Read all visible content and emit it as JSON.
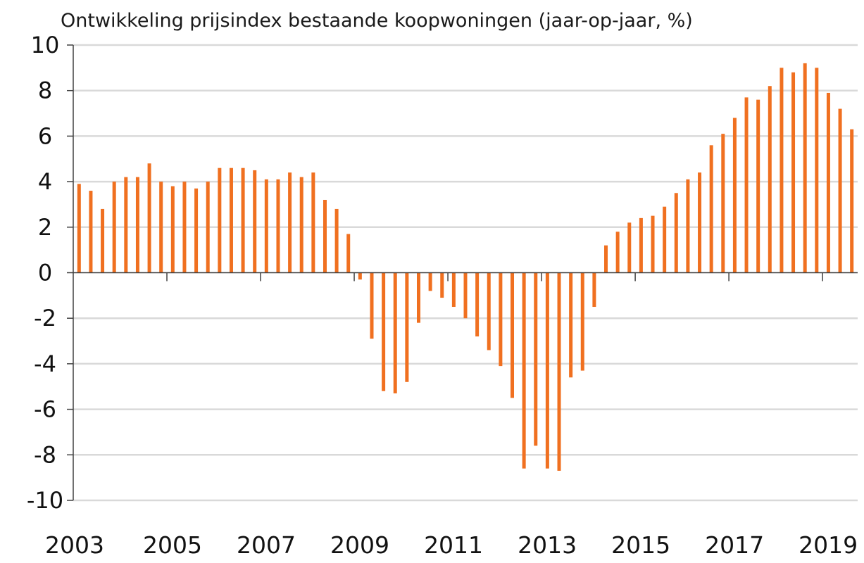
{
  "chart_data": {
    "type": "bar",
    "title": "Ontwikkeling prijsindex bestaande koopwoningen (jaar-op-jaar, %)",
    "xlabel": "",
    "ylabel": "",
    "ylim": [
      -10,
      10
    ],
    "y_ticks": [
      10,
      8,
      6,
      4,
      2,
      0,
      -2,
      -4,
      -6,
      -8,
      -10
    ],
    "x_tick_labels": [
      "2003",
      "2005",
      "2007",
      "2009",
      "2011",
      "2013",
      "2015",
      "2017",
      "2019"
    ],
    "grid": true,
    "legend": "none",
    "bar_color": "#f07020",
    "series": [
      {
        "values": [
          3.9,
          3.6,
          2.8,
          4.0,
          4.2,
          4.2,
          4.8,
          4.0,
          3.8,
          4.0,
          3.7,
          4.0,
          4.6,
          4.6,
          4.6,
          4.5,
          4.1,
          4.1,
          4.4,
          4.2,
          4.4,
          3.2,
          2.8,
          1.7,
          -0.3,
          -2.9,
          -5.2,
          -5.3,
          -4.8,
          -2.2,
          -0.8,
          -1.1,
          -1.5,
          -2.0,
          -2.8,
          -3.4,
          -4.1,
          -5.5,
          -8.6,
          -7.6,
          -8.6,
          -8.7,
          -4.6,
          -4.3,
          -1.5,
          1.2,
          1.8,
          2.2,
          2.4,
          2.5,
          2.9,
          3.5,
          4.1,
          4.4,
          5.6,
          6.1,
          6.8,
          7.7,
          7.6,
          8.2,
          9.0,
          8.8,
          9.2,
          9.0,
          7.9,
          7.2,
          6.3
        ]
      }
    ]
  }
}
